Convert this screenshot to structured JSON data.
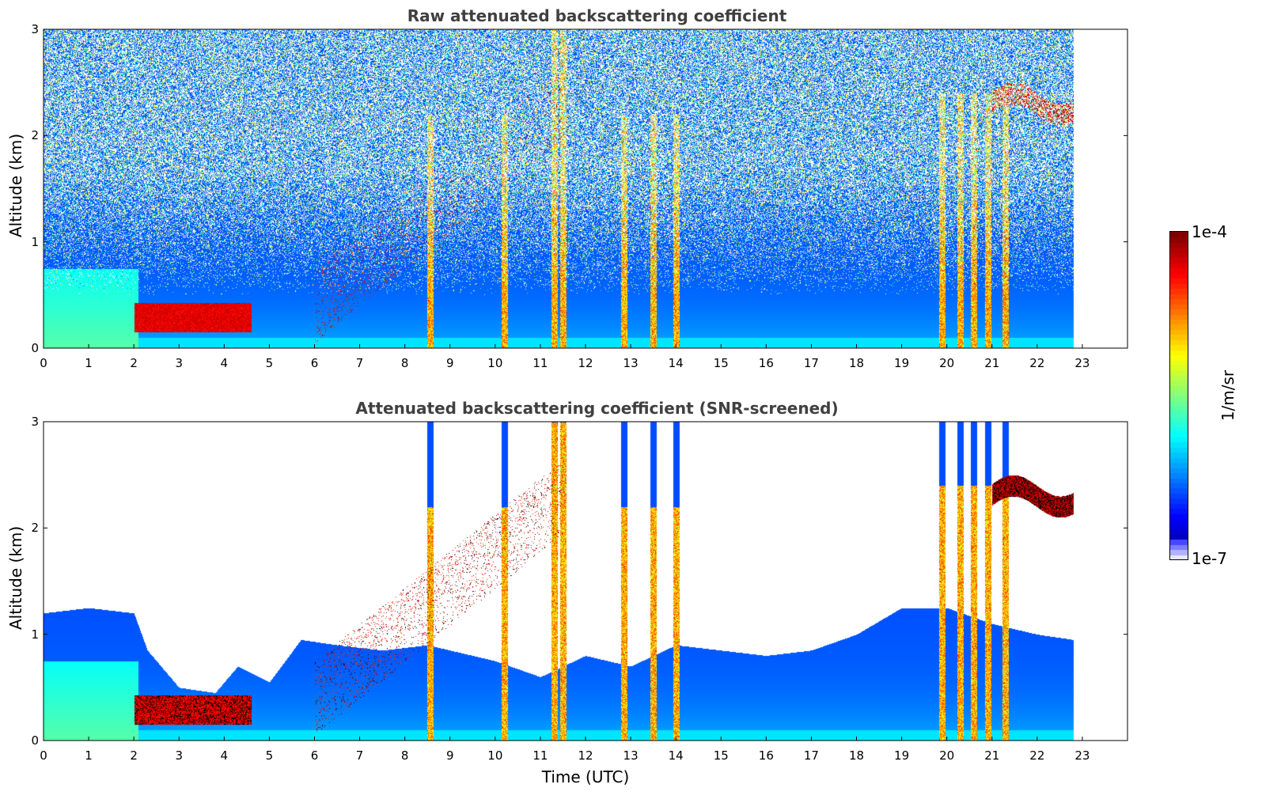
{
  "chart_data": [
    {
      "type": "heatmap",
      "title": "Raw attenuated backscattering coefficient",
      "xlabel": "",
      "ylabel": "Altitude (km)",
      "xlim": [
        0,
        24
      ],
      "ylim": [
        0,
        3
      ],
      "x_ticks": [
        "0",
        "1",
        "2",
        "3",
        "4",
        "5",
        "6",
        "7",
        "8",
        "9",
        "10",
        "11",
        "12",
        "13",
        "14",
        "15",
        "16",
        "17",
        "18",
        "19",
        "20",
        "21",
        "22",
        "23"
      ],
      "y_ticks": [
        "0",
        "1",
        "2",
        "3"
      ],
      "data_end_time": 22.8,
      "features": {
        "boundary_layer_top_km": 0.75,
        "aerosol_layer_km": [
          0.15,
          0.35
        ],
        "aerosol_layer_hours": [
          2.0,
          4.6
        ],
        "rising_cloud_hours": [
          6.0,
          11.5
        ],
        "rising_cloud_km": [
          0.4,
          2.3
        ],
        "precipitation_shafts_hours": [
          8.55,
          10.2,
          11.3,
          11.5,
          12.85,
          13.5,
          14.0,
          19.9,
          20.3,
          20.6,
          20.9,
          21.3
        ],
        "evening_cloud_hours": [
          21.0,
          22.8
        ],
        "evening_cloud_km": [
          2.2,
          2.6
        ]
      }
    },
    {
      "type": "heatmap",
      "title": "Attenuated backscattering coefficient (SNR-screened)",
      "xlabel": "Time (UTC)",
      "ylabel": "Altitude (km)",
      "xlim": [
        0,
        24
      ],
      "ylim": [
        0,
        3
      ],
      "x_ticks": [
        "0",
        "1",
        "2",
        "3",
        "4",
        "5",
        "6",
        "7",
        "8",
        "9",
        "10",
        "11",
        "12",
        "13",
        "14",
        "15",
        "16",
        "17",
        "18",
        "19",
        "20",
        "21",
        "22",
        "23"
      ],
      "y_ticks": [
        "0",
        "1",
        "2",
        "3"
      ],
      "data_end_time": 22.8,
      "screened_top_profile_km": [
        [
          0,
          1.2
        ],
        [
          1,
          1.25
        ],
        [
          2,
          1.2
        ],
        [
          2.3,
          0.85
        ],
        [
          3,
          0.5
        ],
        [
          3.8,
          0.45
        ],
        [
          4.3,
          0.7
        ],
        [
          5,
          0.55
        ],
        [
          5.7,
          0.95
        ],
        [
          6.5,
          0.9
        ],
        [
          7.5,
          0.85
        ],
        [
          8.5,
          0.9
        ],
        [
          10,
          0.75
        ],
        [
          11,
          0.6
        ],
        [
          12,
          0.8
        ],
        [
          13,
          0.7
        ],
        [
          14,
          0.9
        ],
        [
          15,
          0.85
        ],
        [
          16,
          0.8
        ],
        [
          17,
          0.85
        ],
        [
          18,
          1.0
        ],
        [
          19,
          1.25
        ],
        [
          20,
          1.25
        ],
        [
          21,
          1.1
        ],
        [
          22,
          1.0
        ],
        [
          22.8,
          0.95
        ]
      ]
    }
  ],
  "colorbar": {
    "label": "1/m/sr",
    "max_label": "1e-4",
    "min_label": "1e-7",
    "scale": "log",
    "colormap": "jet"
  }
}
